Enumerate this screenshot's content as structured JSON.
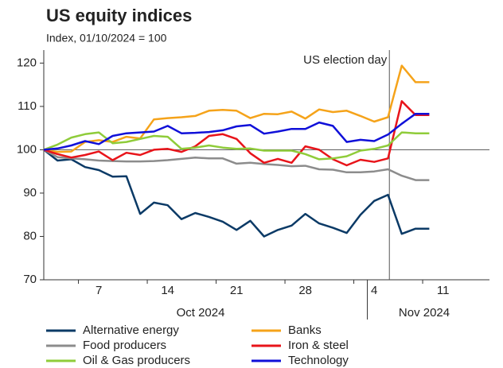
{
  "chart_data": {
    "type": "line",
    "title": "US equity indices",
    "subtitle": "Index, 01/10/2024 = 100",
    "annotation": "US election day",
    "categories": [
      null,
      null,
      null,
      null,
      "7",
      null,
      null,
      null,
      null,
      "14",
      null,
      null,
      null,
      null,
      "21",
      null,
      null,
      null,
      null,
      "28",
      null,
      null,
      null,
      null,
      "4",
      null,
      null,
      null,
      null,
      "11"
    ],
    "month_labels": [
      "Oct 2024",
      "Nov 2024"
    ],
    "ylim": [
      70,
      123
    ],
    "yticks": [
      70,
      80,
      90,
      100,
      110,
      120
    ],
    "reference_line": 100,
    "grid": false,
    "legend": "bottom",
    "series": [
      {
        "name": "Alternative energy",
        "color": "#0b3a66",
        "values": [
          100,
          97.5,
          97.8,
          96,
          95.3,
          93.8,
          93.9,
          85.2,
          87.8,
          87.2,
          84,
          85.4,
          84.5,
          83.4,
          81.5,
          83.6,
          80,
          81.5,
          82.5,
          85.2,
          83,
          82,
          80.8,
          85,
          88.2,
          89.6,
          80.6,
          81.8,
          81.8,
          null
        ]
      },
      {
        "name": "Banks",
        "color": "#f5a31a",
        "values": [
          100,
          99.5,
          99.6,
          101.8,
          102.2,
          101.8,
          103,
          102.6,
          107,
          107.3,
          107.5,
          107.8,
          109,
          109.2,
          109,
          107.3,
          108.3,
          108.2,
          108.8,
          107.2,
          109.3,
          108.7,
          109,
          107.8,
          106.5,
          107.5,
          119.4,
          115.6,
          115.6,
          null
        ]
      },
      {
        "name": "Food producers",
        "color": "#8c8c8c",
        "values": [
          100,
          98.3,
          98,
          97.8,
          97.5,
          97.4,
          97.3,
          97.3,
          97.4,
          97.6,
          97.9,
          98.2,
          98,
          98,
          96.8,
          97,
          96.7,
          96.5,
          96.2,
          96.3,
          95.5,
          95.4,
          94.8,
          94.8,
          95,
          95.5,
          94,
          93,
          93,
          null
        ]
      },
      {
        "name": "Iron & steel",
        "color": "#e8141a",
        "values": [
          100,
          99,
          98.2,
          98.8,
          99.6,
          97.6,
          99.3,
          98.8,
          100,
          100.2,
          99.5,
          100.8,
          103.2,
          103.6,
          102.5,
          99.2,
          97,
          97.9,
          97,
          100.8,
          100,
          97.8,
          96.4,
          97.7,
          97.2,
          98,
          111.2,
          108,
          108,
          null
        ]
      },
      {
        "name": "Oil & Gas producers",
        "color": "#8fcc3a",
        "values": [
          100,
          101.2,
          102.8,
          103.6,
          104,
          101.5,
          101.8,
          102.5,
          103.2,
          103,
          100.2,
          100.5,
          101,
          100.5,
          100.2,
          100.3,
          99.8,
          99.8,
          99.8,
          99,
          97.8,
          98,
          98.5,
          99.8,
          100.2,
          101,
          104,
          103.8,
          103.8,
          null
        ]
      },
      {
        "name": "Technology",
        "color": "#1010d9",
        "values": [
          100,
          100.3,
          101,
          102,
          101.3,
          103.2,
          103.8,
          104,
          104.2,
          105.5,
          103.8,
          103.9,
          104.1,
          104.5,
          105.4,
          105.7,
          103.7,
          104.2,
          104.8,
          104.8,
          106.3,
          105.5,
          101.8,
          102.3,
          102,
          103.5,
          106,
          108.3,
          108.3,
          null
        ]
      }
    ]
  }
}
